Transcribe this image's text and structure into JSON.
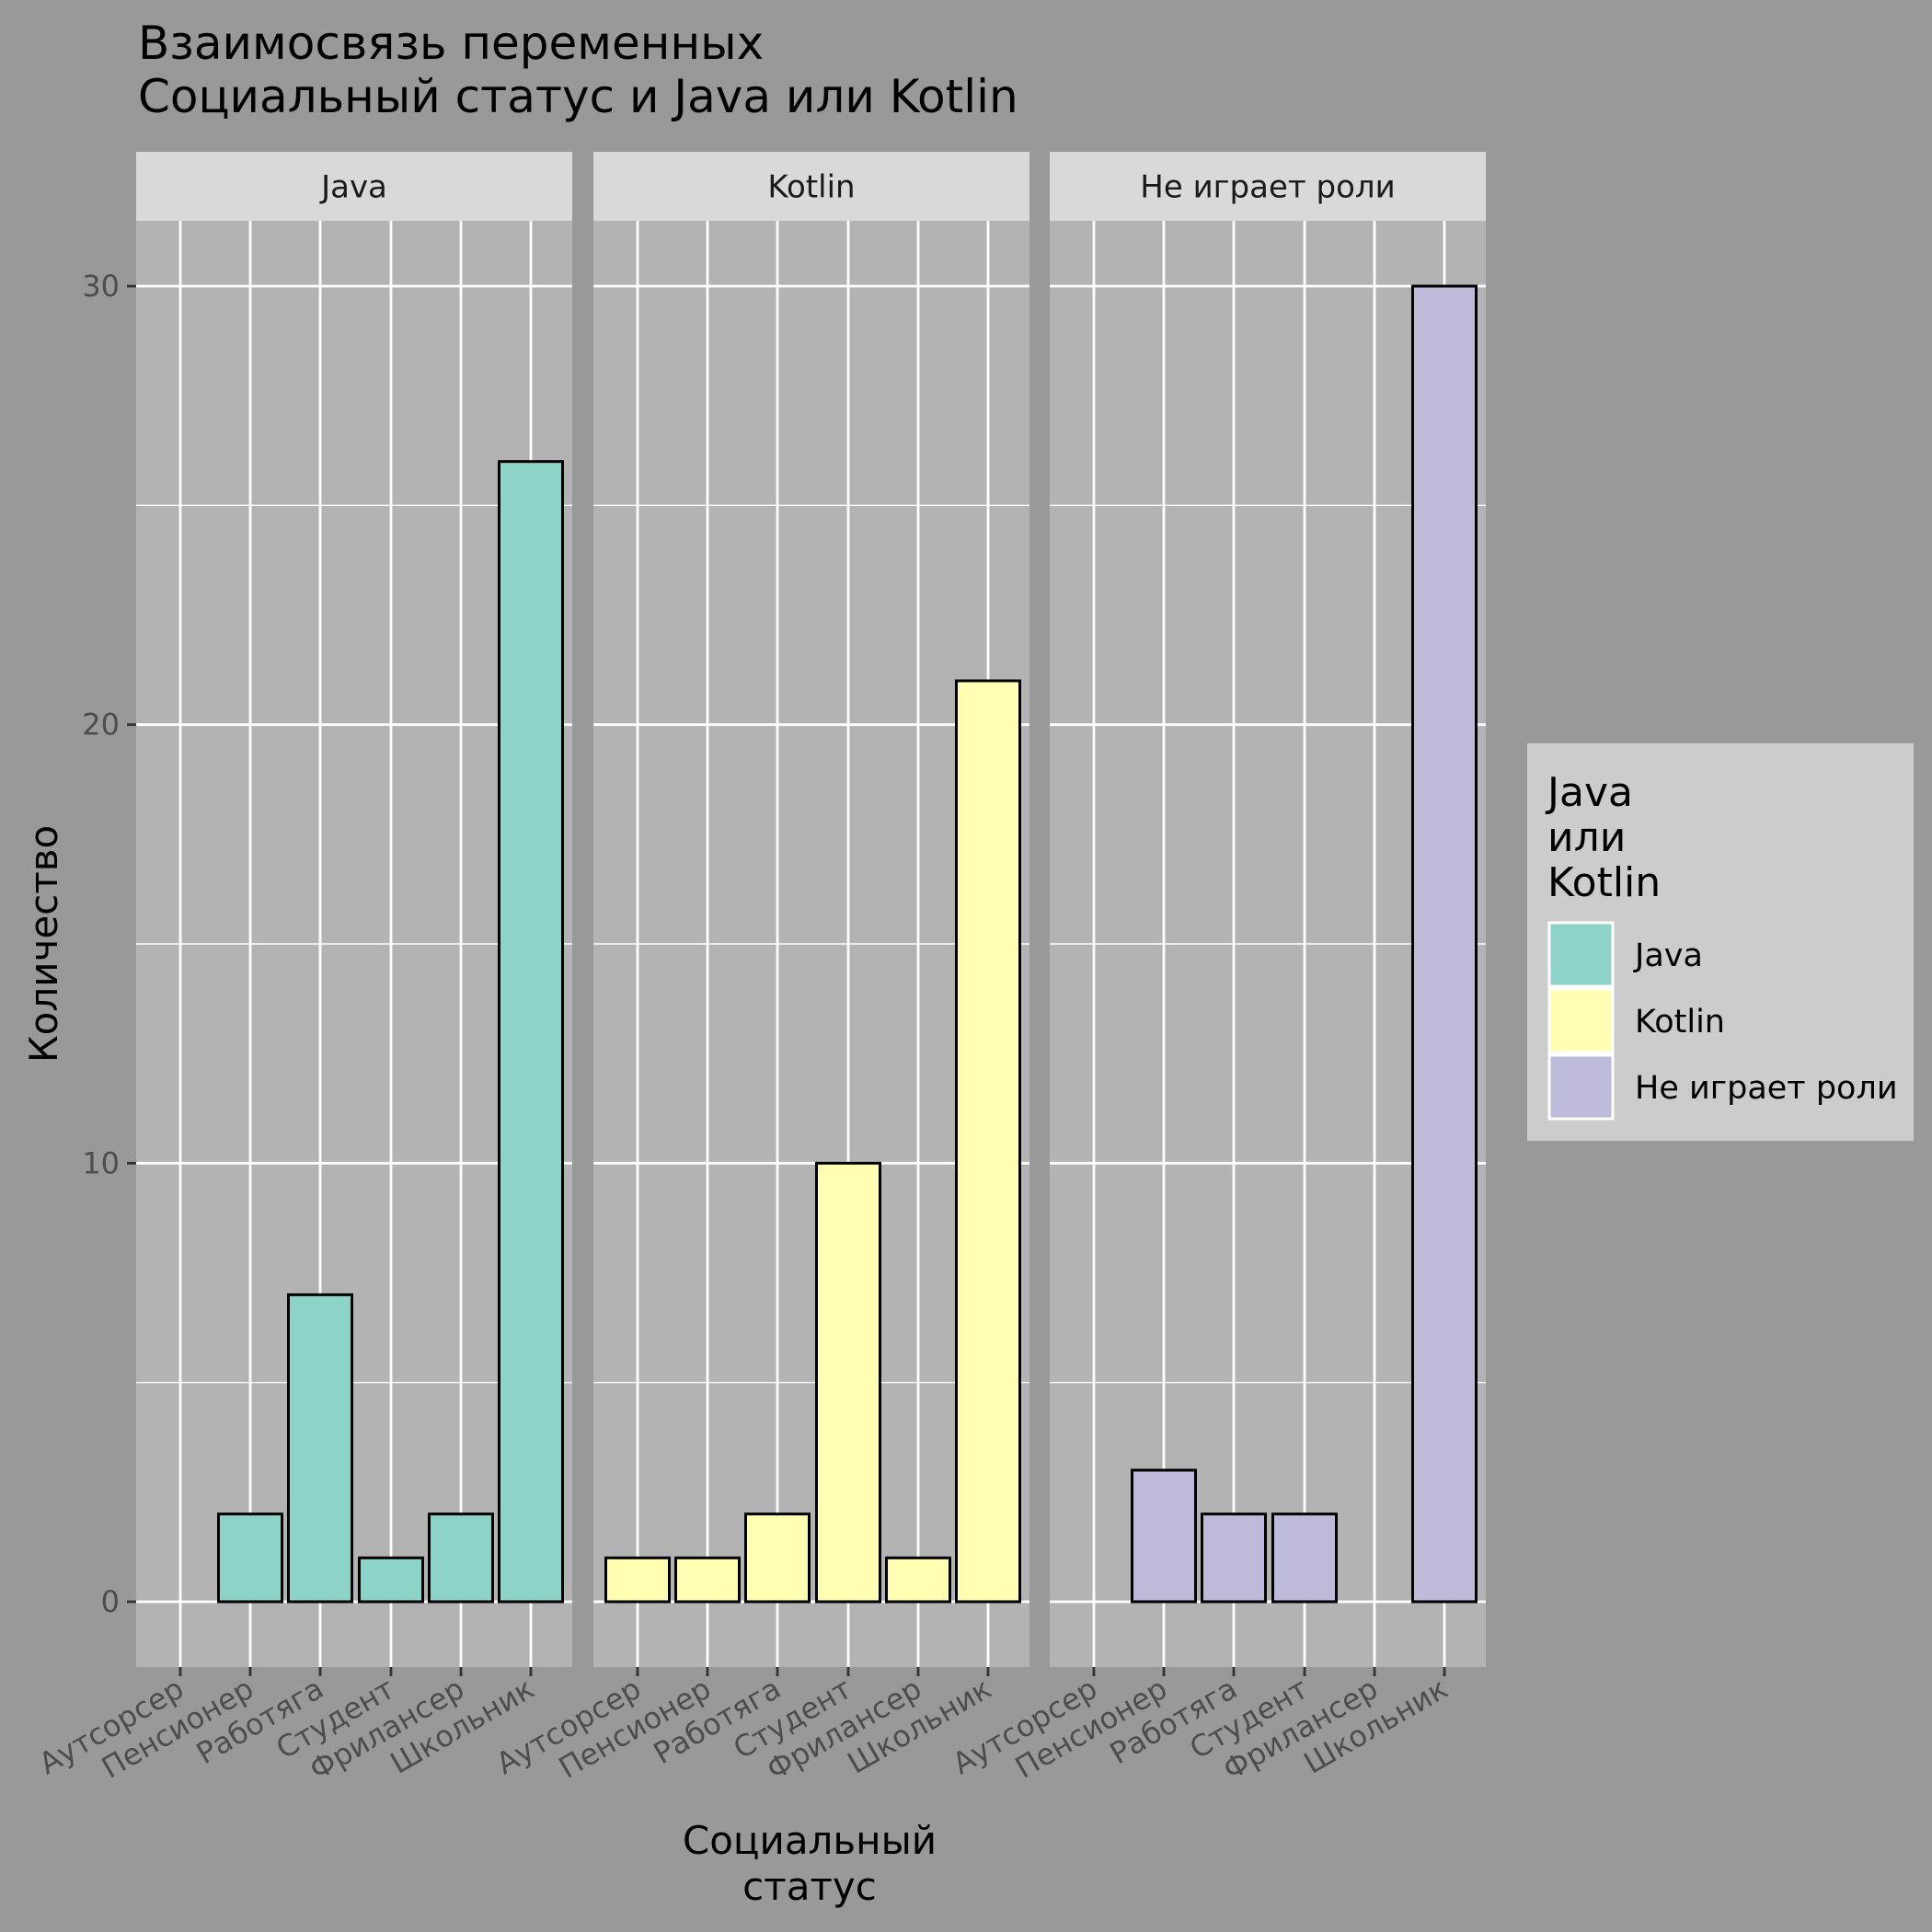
{
  "chart_data": {
    "type": "bar",
    "title_lines": [
      "Взаимосвязь переменных",
      " Социальный статус и Java или Kotlin"
    ],
    "xlabel_lines": [
      "Социальный",
      "статус"
    ],
    "ylabel": "Количество",
    "ylim": [
      0,
      30
    ],
    "y_ticks": [
      "0",
      "10",
      "20",
      "30"
    ],
    "categories": [
      "Аутсорсер",
      "Пенсионер",
      "Работяга",
      "Студент",
      "Фрилансер",
      "Школьник"
    ],
    "facets": [
      {
        "name": "Java",
        "color": "#8DD3C7",
        "values": [
          0,
          2,
          7,
          1,
          2,
          26
        ]
      },
      {
        "name": "Kotlin",
        "color": "#FFFFB3",
        "values": [
          1,
          1,
          2,
          10,
          1,
          21
        ]
      },
      {
        "name": "Не играет роли",
        "color": "#BEBADA",
        "values": [
          0,
          3,
          2,
          2,
          0,
          30
        ]
      }
    ],
    "legend": {
      "title_lines": [
        "Java",
        "или",
        "Kotlin"
      ],
      "position": "right",
      "items": [
        {
          "label": "Java",
          "color": "#8DD3C7"
        },
        {
          "label": "Kotlin",
          "color": "#FFFFB3"
        },
        {
          "label": "Не играет роли",
          "color": "#BEBADA"
        }
      ]
    },
    "grid": true,
    "colors": {
      "background": "#999999",
      "panel": "#B3B3B3",
      "strip": "#D9D9D9",
      "legend_bg": "#CCCCCC",
      "gridline": "#FFFFFF",
      "bar_outline": "#000000"
    }
  }
}
